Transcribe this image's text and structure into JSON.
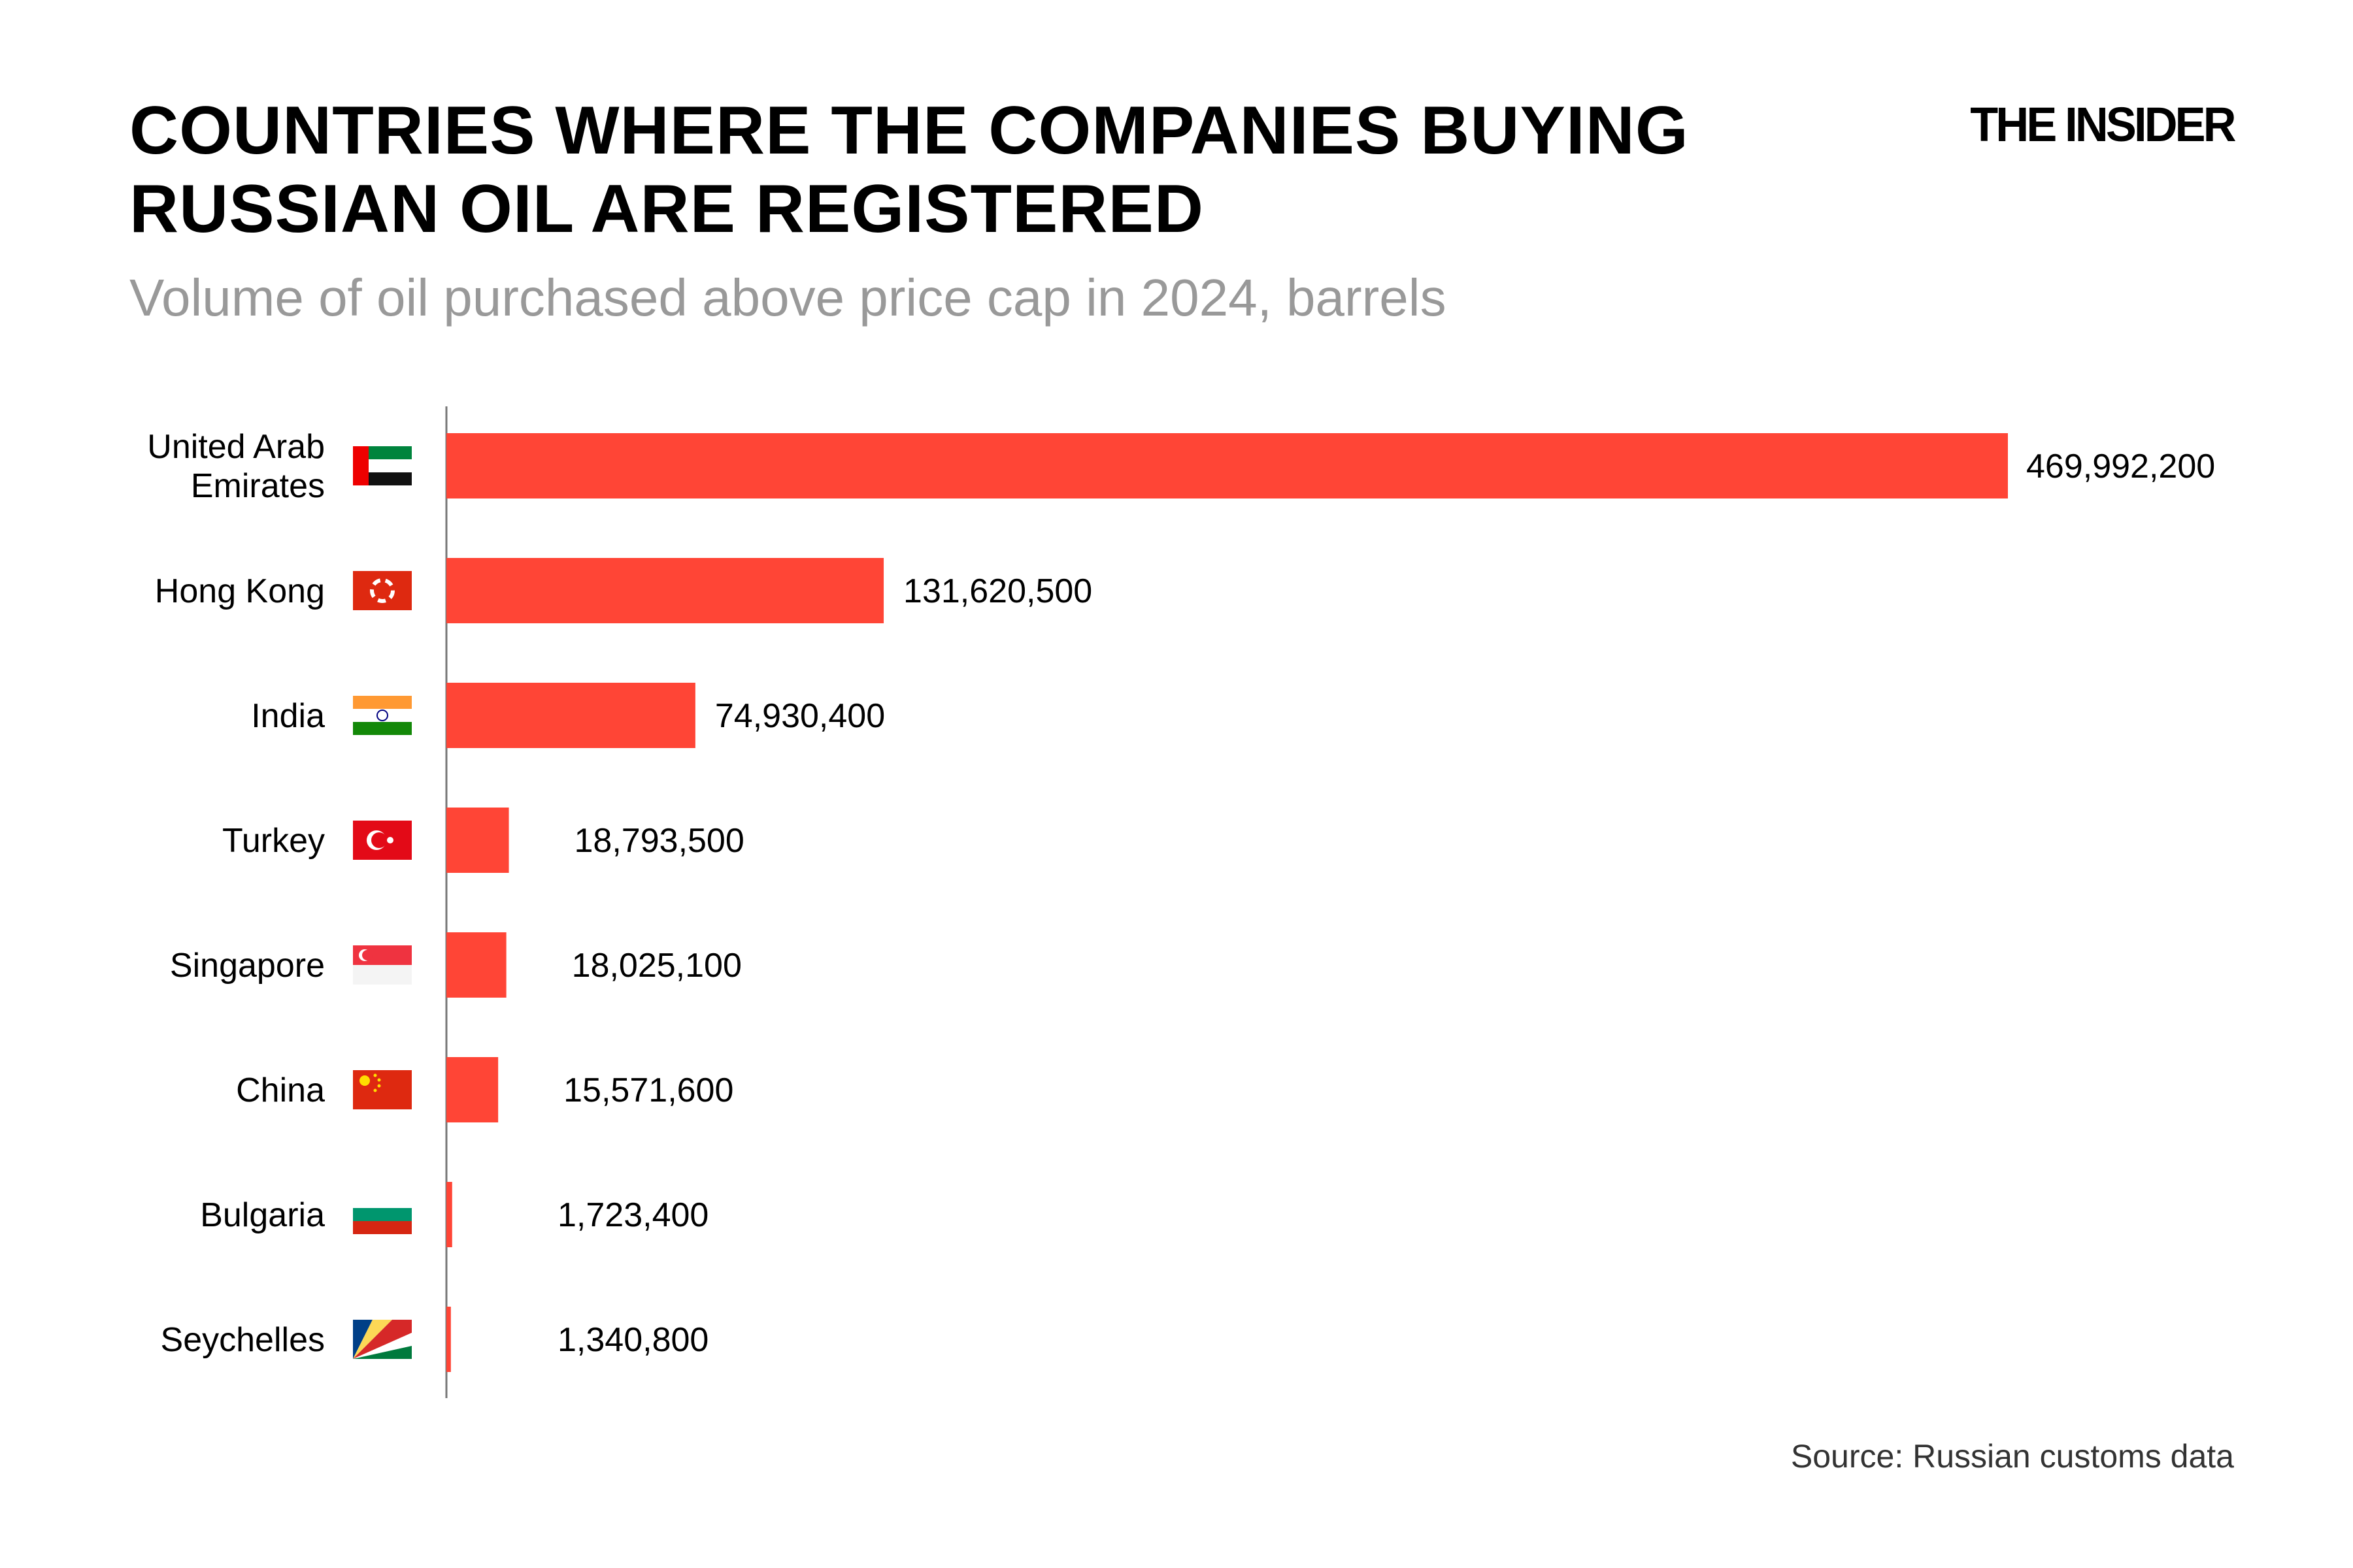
{
  "chart_data": {
    "type": "bar",
    "orientation": "horizontal",
    "title": "COUNTRIES WHERE THE COMPANIES BUYING RUSSIAN OIL ARE REGISTERED",
    "subtitle": "Volume of oil purchased above price cap in 2024, barrels",
    "categories": [
      "United Arab Emirates",
      "Hong Kong",
      "India",
      "Turkey",
      "Singapore",
      "China",
      "Bulgaria",
      "Seychelles"
    ],
    "category_lines": [
      [
        "United Arab",
        "Emirates"
      ],
      [
        "Hong Kong"
      ],
      [
        "India"
      ],
      [
        "Turkey"
      ],
      [
        "Singapore"
      ],
      [
        "China"
      ],
      [
        "Bulgaria"
      ],
      [
        "Seychelles"
      ]
    ],
    "flags": [
      "flag-uae",
      "flag-hong-kong",
      "flag-india",
      "flag-turkey",
      "flag-singapore",
      "flag-china",
      "flag-bulgaria",
      "flag-seychelles"
    ],
    "values": [
      469992200,
      131620500,
      74930400,
      18793500,
      18025100,
      15571600,
      1723400,
      1340800
    ],
    "value_labels": [
      "469,992,200",
      "131,620,500",
      "74,930,400",
      "18,793,500",
      "18,025,100",
      "15,571,600",
      "1,723,400",
      "1,340,800"
    ],
    "xlim": [
      0,
      469992200
    ],
    "grid": false,
    "bar_color": "#ff4536"
  },
  "logo": "THE INSIDER",
  "source": "Source: Russian customs data"
}
